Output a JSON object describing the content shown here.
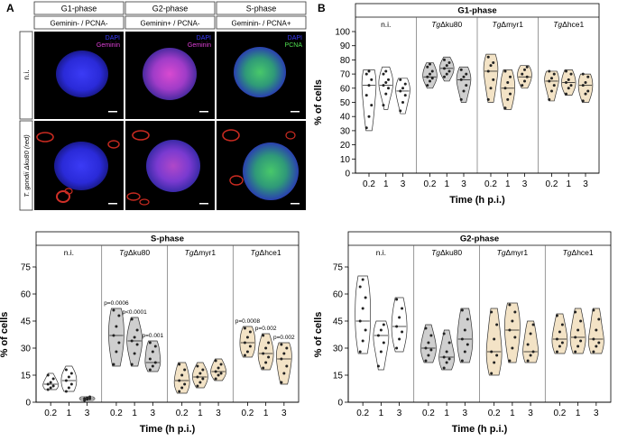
{
  "figure": {
    "panel_a_letter": "A",
    "panel_b_letter": "B",
    "phase_headers": [
      "G1-phase",
      "G2-phase",
      "S-phase"
    ],
    "marker_headers": [
      "Geminin- / PCNA-",
      "Geminin+ / PCNA-",
      "Geminin- / PCNA+"
    ],
    "row_labels": [
      "n.i.",
      "T. gondii Δku80 (red)"
    ],
    "image_labels": [
      {
        "line1": "DAPI",
        "line2": "Geminin"
      },
      {
        "line1": "DAPI",
        "line2": "Geminin"
      },
      {
        "line1": "DAPI",
        "line2": "PCNA"
      }
    ],
    "colors": {
      "dapi_blue": "#2a2ae6",
      "geminin_magenta": "#d040c8",
      "pcna_green": "#38c840",
      "parasite_red": "#d03028",
      "ni_fill": "#ffffff",
      "ku80_fill": "#cfcfcf",
      "myr1_fill": "#f3e3c6",
      "hce1_fill": "#f3e3c6"
    }
  },
  "chart_data": [
    {
      "type": "violin",
      "title": "G1-phase",
      "groups": [
        "n.i.",
        "TgΔku80",
        "TgΔmyr1",
        "TgΔhce1"
      ],
      "categories": [
        "0.2",
        "1",
        "3"
      ],
      "xlabel": "Time (h p.i.)",
      "ylabel": "% of cells",
      "ylim": [
        0,
        100
      ],
      "yticks": [
        0,
        10,
        20,
        30,
        40,
        50,
        60,
        70,
        80,
        90,
        100
      ],
      "series": [
        {
          "name": "n.i.",
          "medians": [
            62,
            62,
            58
          ],
          "ranges": [
            [
              30,
              73
            ],
            [
              45,
              75
            ],
            [
              42,
              67
            ]
          ],
          "points": [
            [
              32,
              40,
              48,
              55,
              62,
              66,
              70,
              72
            ],
            [
              48,
              56,
              60,
              62,
              64,
              66,
              70,
              72
            ],
            [
              44,
              50,
              55,
              58,
              60,
              63,
              66
            ]
          ]
        },
        {
          "name": "TgΔku80",
          "medians": [
            68,
            74,
            66
          ],
          "ranges": [
            [
              60,
              78
            ],
            [
              65,
              82
            ],
            [
              50,
              75
            ]
          ],
          "points": [
            [
              62,
              65,
              67,
              68,
              70,
              72,
              75,
              77
            ],
            [
              68,
              70,
              72,
              74,
              76,
              78,
              80
            ],
            [
              52,
              58,
              62,
              66,
              68,
              70,
              73
            ]
          ]
        },
        {
          "name": "TgΔmyr1",
          "medians": [
            72,
            60,
            68
          ],
          "ranges": [
            [
              50,
              84
            ],
            [
              45,
              73
            ],
            [
              60,
              76
            ]
          ],
          "points": [
            [
              52,
              60,
              66,
              72,
              76,
              78,
              82
            ],
            [
              46,
              52,
              56,
              60,
              64,
              68,
              72
            ],
            [
              62,
              65,
              68,
              70,
              73,
              75
            ]
          ]
        },
        {
          "name": "TgΔhce1",
          "medians": [
            65,
            64,
            62
          ],
          "ranges": [
            [
              51,
              72
            ],
            [
              55,
              73
            ],
            [
              50,
              70
            ]
          ],
          "points": [
            [
              52,
              58,
              62,
              65,
              67,
              70,
              72
            ],
            [
              56,
              60,
              62,
              64,
              66,
              70,
              72
            ],
            [
              51,
              56,
              58,
              62,
              64,
              68,
              70
            ]
          ]
        }
      ],
      "annotations": []
    },
    {
      "type": "violin",
      "title": "S-phase",
      "groups": [
        "n.i.",
        "TgΔku80",
        "TgΔmyr1",
        "TgΔhce1"
      ],
      "categories": [
        "0.2",
        "1",
        "3"
      ],
      "xlabel": "Time (h p.i.)",
      "ylabel": "% of cells",
      "ylim": [
        0,
        75
      ],
      "yticks": [
        0,
        15,
        30,
        45,
        60,
        75
      ],
      "series": [
        {
          "name": "n.i.",
          "medians": [
            10,
            12,
            2
          ],
          "ranges": [
            [
              7,
              16
            ],
            [
              6,
              20
            ],
            [
              1,
              3
            ]
          ],
          "points": [
            [
              7,
              8,
              9,
              10,
              11,
              13,
              15
            ],
            [
              6,
              8,
              10,
              12,
              14,
              16,
              18
            ],
            [
              1,
              1.5,
              2,
              2,
              2.5,
              3
            ]
          ]
        },
        {
          "name": "TgΔku80",
          "medians": [
            37,
            34,
            22
          ],
          "ranges": [
            [
              20,
              52
            ],
            [
              20,
              47
            ],
            [
              17,
              34
            ]
          ],
          "points": [
            [
              21,
              28,
              33,
              37,
              42,
              48,
              51
            ],
            [
              21,
              27,
              32,
              34,
              36,
              40,
              46
            ],
            [
              18,
              20,
              22,
              24,
              28,
              31,
              33
            ]
          ]
        },
        {
          "name": "TgΔmyr1",
          "medians": [
            12,
            14,
            17
          ],
          "ranges": [
            [
              5,
              22
            ],
            [
              8,
              22
            ],
            [
              12,
              24
            ]
          ],
          "points": [
            [
              6,
              8,
              10,
              12,
              15,
              18,
              21
            ],
            [
              9,
              11,
              13,
              14,
              16,
              18,
              20
            ],
            [
              13,
              15,
              16,
              17,
              19,
              21,
              23
            ]
          ]
        },
        {
          "name": "TgΔhce1",
          "medians": [
            33,
            27,
            24
          ],
          "ranges": [
            [
              25,
              42
            ],
            [
              18,
              38
            ],
            [
              10,
              33
            ]
          ],
          "points": [
            [
              26,
              28,
              31,
              33,
              36,
              39,
              41
            ],
            [
              19,
              22,
              25,
              27,
              30,
              33,
              37
            ],
            [
              11,
              16,
              20,
              24,
              27,
              30,
              32
            ]
          ]
        }
      ],
      "annotations": [
        {
          "group": "TgΔku80",
          "category": "0.2",
          "text": "p=0.0006"
        },
        {
          "group": "TgΔku80",
          "category": "1",
          "text": "p<0.0001"
        },
        {
          "group": "TgΔku80",
          "category": "3",
          "text": "p=0.001"
        },
        {
          "group": "TgΔhce1",
          "category": "0.2",
          "text": "p=0.0008"
        },
        {
          "group": "TgΔhce1",
          "category": "1",
          "text": "p=0.002"
        },
        {
          "group": "TgΔhce1",
          "category": "3",
          "text": "p=0.002"
        }
      ]
    },
    {
      "type": "violin",
      "title": "G2-phase",
      "groups": [
        "n.i.",
        "TgΔku80",
        "TgΔmyr1",
        "TgΔhce1"
      ],
      "categories": [
        "0.2",
        "1",
        "3"
      ],
      "xlabel": "Time (h p.i.)",
      "ylabel": "% of cells",
      "ylim": [
        0,
        75
      ],
      "yticks": [
        0,
        15,
        30,
        45,
        60,
        75
      ],
      "series": [
        {
          "name": "n.i.",
          "medians": [
            45,
            37,
            42
          ],
          "ranges": [
            [
              27,
              70
            ],
            [
              18,
              45
            ],
            [
              28,
              58
            ]
          ],
          "points": [
            [
              28,
              34,
              40,
              45,
              52,
              58,
              64,
              68
            ],
            [
              20,
              28,
              33,
              37,
              40,
              43
            ],
            [
              30,
              35,
              39,
              42,
              47,
              52,
              57
            ]
          ]
        },
        {
          "name": "TgΔku80",
          "medians": [
            30,
            25,
            35
          ],
          "ranges": [
            [
              22,
              43
            ],
            [
              18,
              40
            ],
            [
              22,
              52
            ]
          ],
          "points": [
            [
              23,
              26,
              29,
              30,
              33,
              37,
              41
            ],
            [
              19,
              22,
              24,
              25,
              28,
              33,
              38
            ],
            [
              23,
              28,
              32,
              35,
              40,
              46,
              51
            ]
          ]
        },
        {
          "name": "TgΔmyr1",
          "medians": [
            28,
            40,
            28
          ],
          "ranges": [
            [
              15,
              52
            ],
            [
              22,
              55
            ],
            [
              22,
              45
            ]
          ],
          "points": [
            [
              16,
              22,
              26,
              28,
              35,
              43,
              50
            ],
            [
              23,
              30,
              36,
              40,
              45,
              50,
              54
            ],
            [
              23,
              26,
              28,
              32,
              38,
              43
            ]
          ]
        },
        {
          "name": "TgΔhce1",
          "medians": [
            35,
            36,
            35
          ],
          "ranges": [
            [
              27,
              49
            ],
            [
              27,
              52
            ],
            [
              27,
              52
            ]
          ],
          "points": [
            [
              28,
              31,
              33,
              35,
              39,
              43,
              48
            ],
            [
              28,
              31,
              34,
              36,
              40,
              45,
              50
            ],
            [
              28,
              31,
              33,
              35,
              40,
              46,
              51
            ]
          ]
        }
      ],
      "annotations": []
    }
  ]
}
